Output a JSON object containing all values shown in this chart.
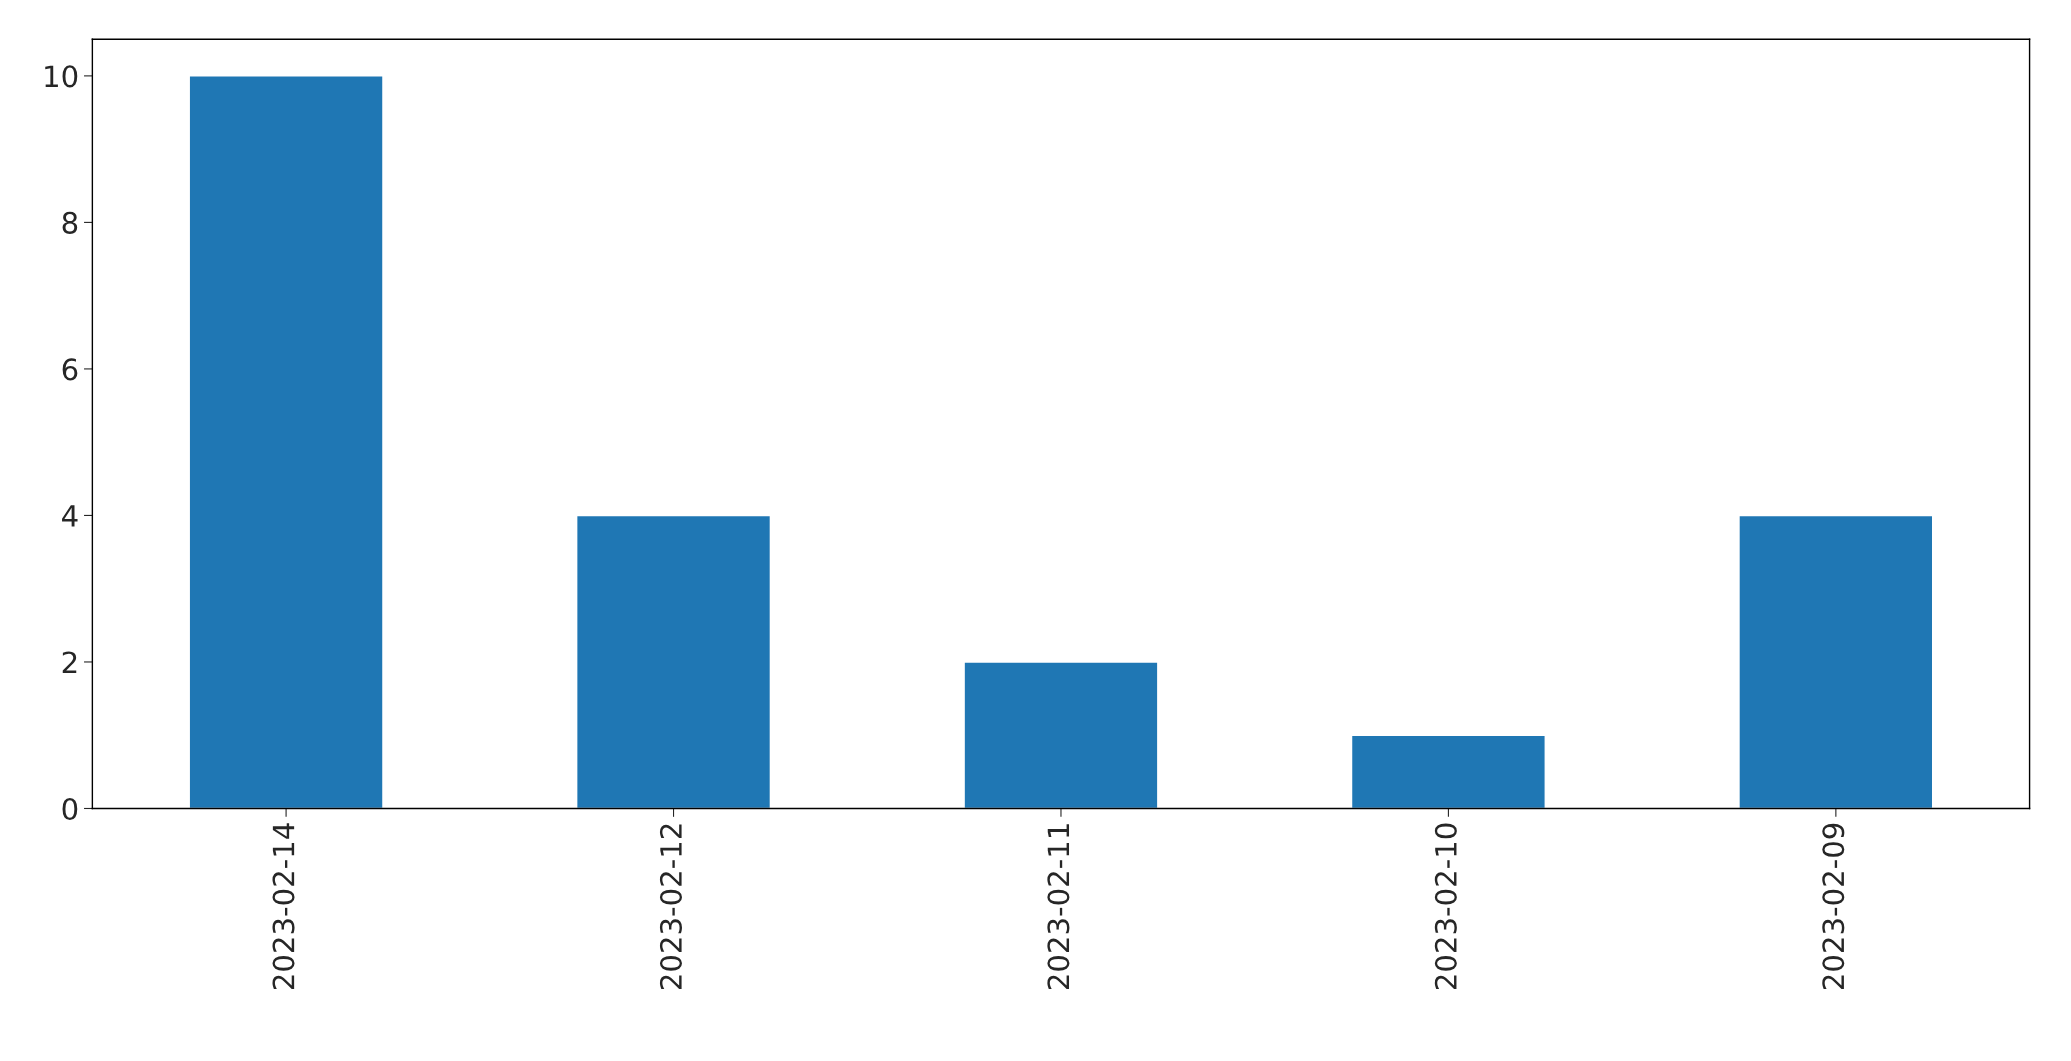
{
  "chart_data": {
    "type": "bar",
    "categories": [
      "2023-02-14",
      "2023-02-12",
      "2023-02-11",
      "2023-02-10",
      "2023-02-09"
    ],
    "values": [
      10,
      4,
      2,
      1,
      4
    ],
    "color": "#1f77b4",
    "ylim": [
      0,
      10.5
    ],
    "yticks": [
      0,
      2,
      4,
      6,
      8,
      10
    ],
    "grid": false
  }
}
